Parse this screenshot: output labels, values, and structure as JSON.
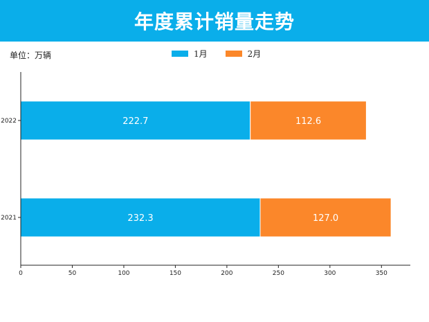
{
  "title": "年度累计销量走势",
  "unit_label": "单位：万辆",
  "colors": {
    "title_bar": "#0aaeea",
    "series_1": "#0aaeea",
    "series_2": "#fb872a",
    "axis": "#222222",
    "bar_text": "#ffffff"
  },
  "legend": [
    {
      "label": "1月",
      "color": "#0aaeea"
    },
    {
      "label": "2月",
      "color": "#fb872a"
    }
  ],
  "chart_data": {
    "type": "bar",
    "orientation": "horizontal",
    "stacked": true,
    "title": "年度累计销量走势",
    "xlabel": "",
    "ylabel": "",
    "categories": [
      "2022",
      "2021"
    ],
    "series": [
      {
        "name": "1月",
        "values": [
          222.7,
          232.3
        ],
        "labels": [
          "222.7",
          "232.3"
        ]
      },
      {
        "name": "2月",
        "values": [
          112.6,
          127.0
        ],
        "labels": [
          "112.6",
          "127.0"
        ]
      }
    ],
    "xlim": [
      0,
      378
    ],
    "xticks": [
      0,
      50,
      100,
      150,
      200,
      250,
      300,
      350
    ],
    "grid": false,
    "legend_position": "top-center"
  }
}
